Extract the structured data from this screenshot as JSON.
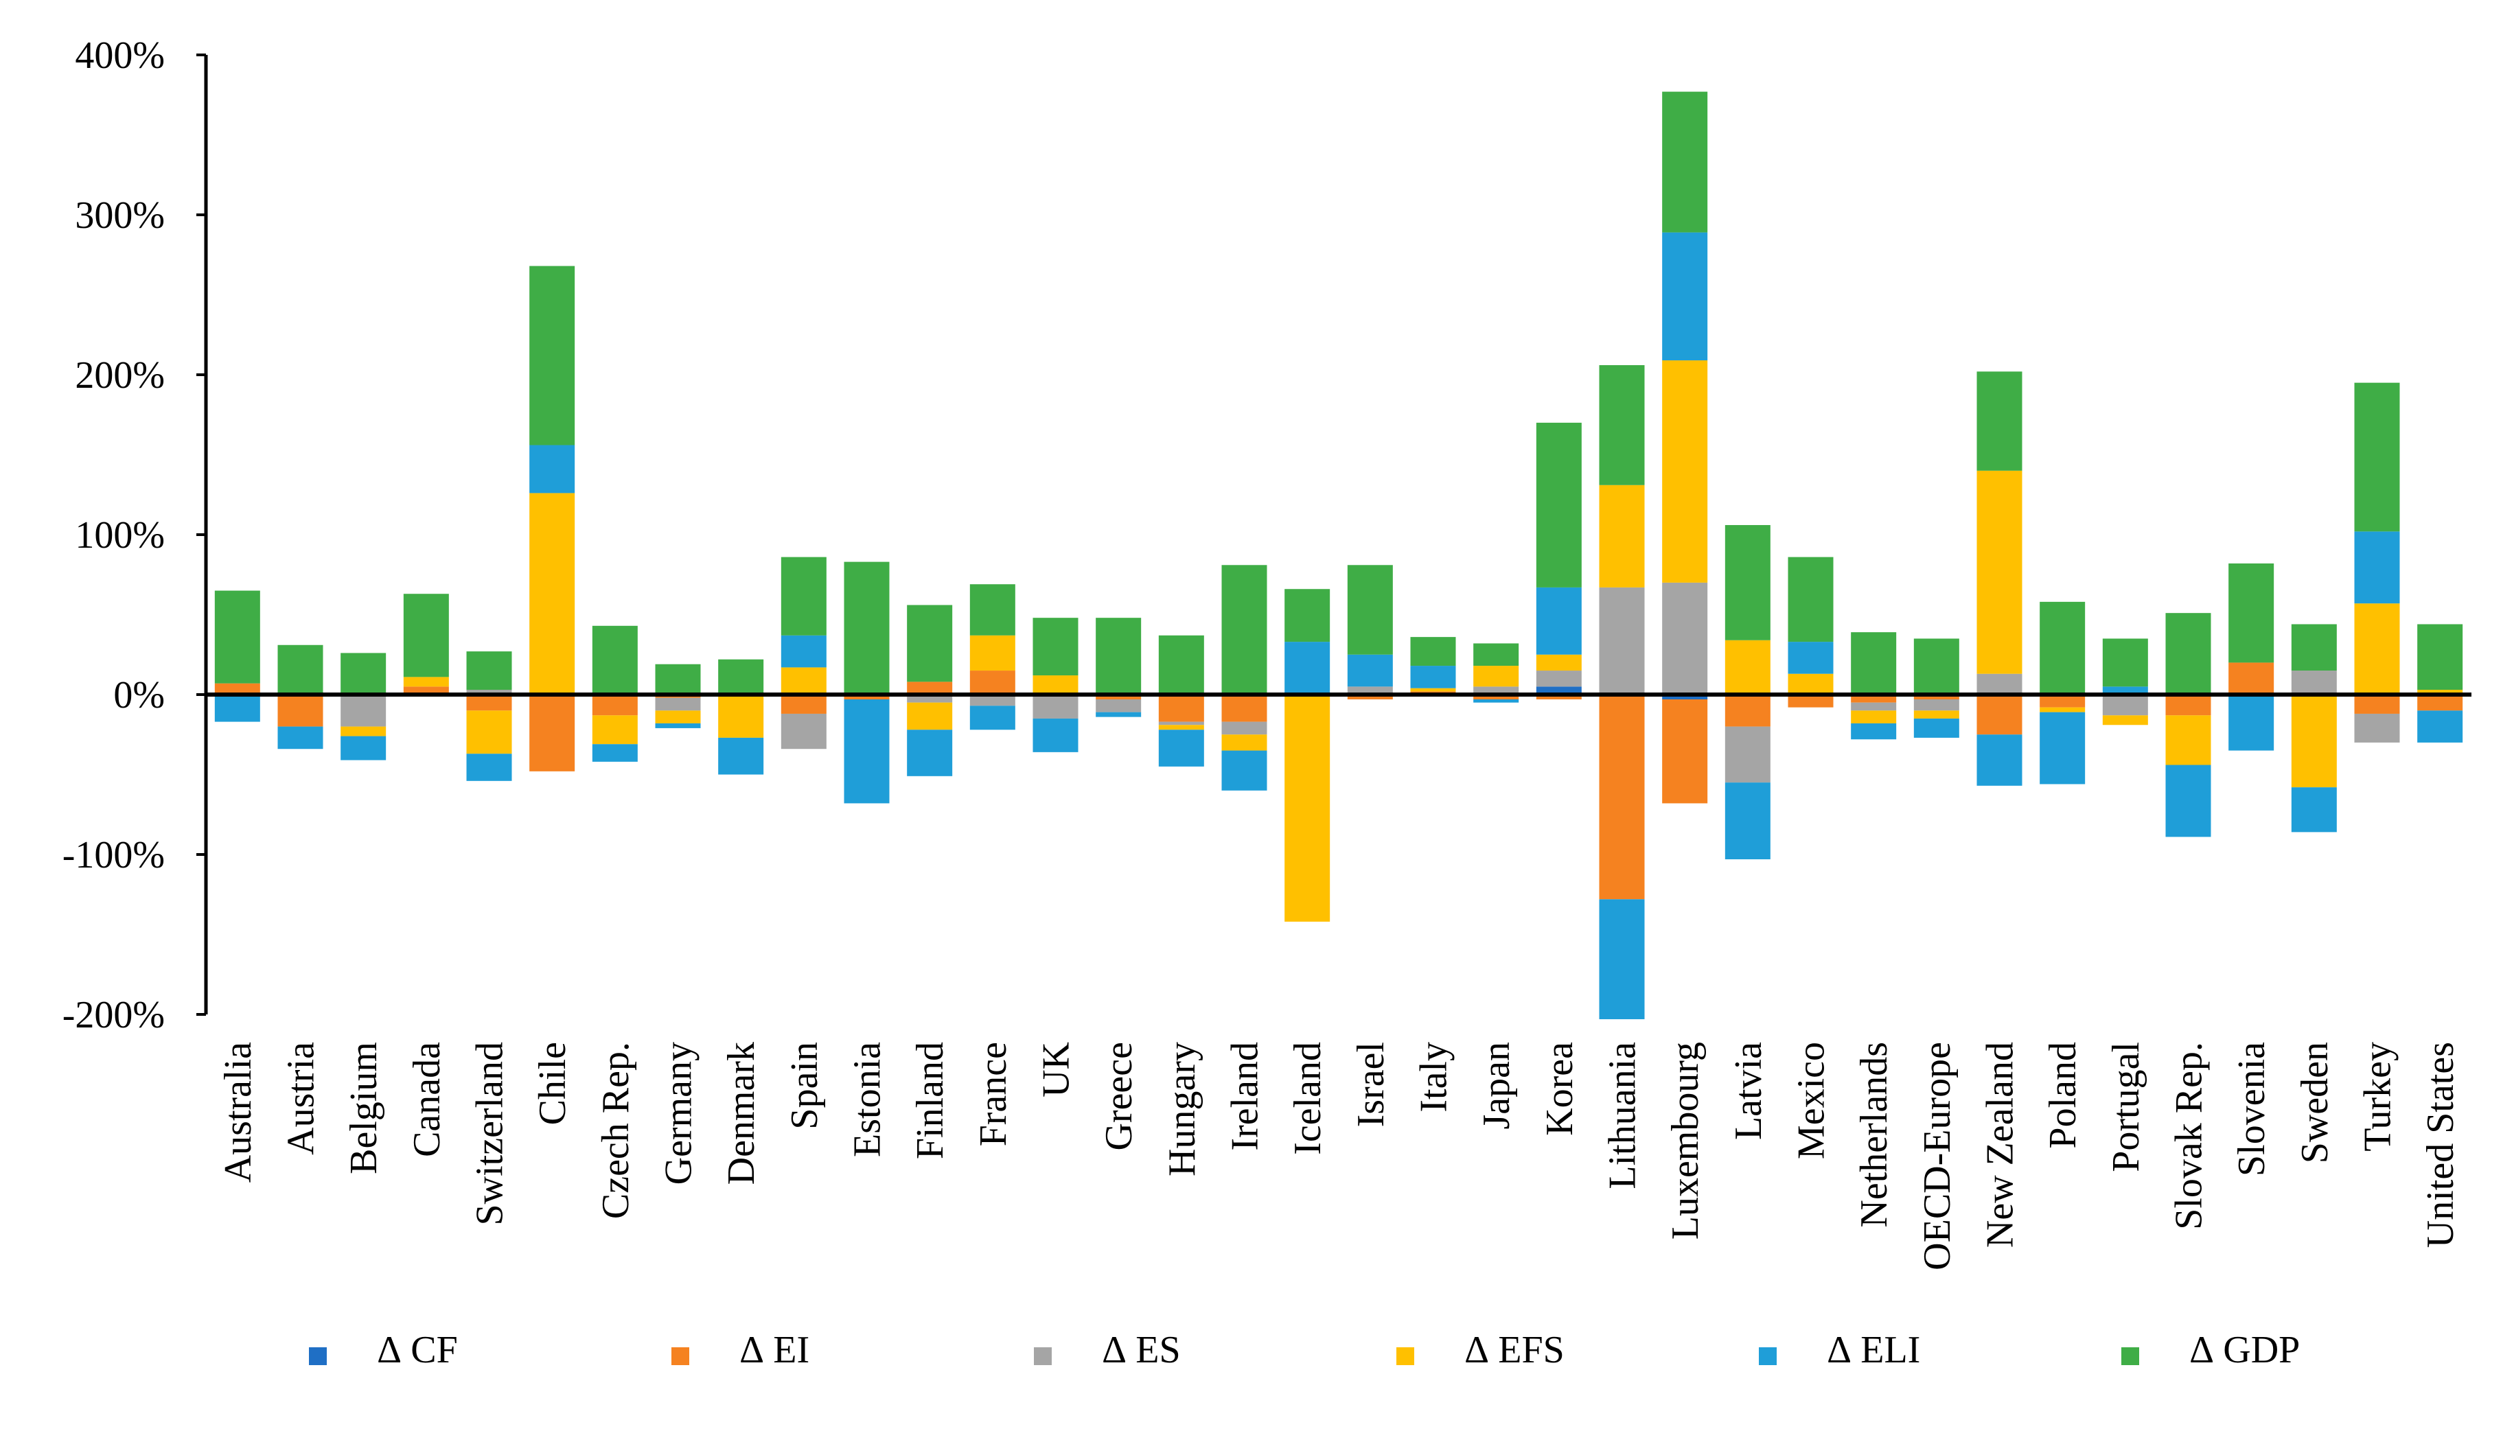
{
  "chart_data": {
    "type": "bar",
    "stacked": true,
    "title": "",
    "xlabel": "",
    "ylabel": "",
    "ylim": [
      -200,
      400
    ],
    "yticks": [
      -200,
      -100,
      0,
      100,
      200,
      300,
      400
    ],
    "ytick_labels": [
      "-200%",
      "-100%",
      "0%",
      "100%",
      "200%",
      "300%",
      "400%"
    ],
    "unit": "%",
    "legend_position": "bottom",
    "categories": [
      "Australia",
      "Austria",
      "Belgium",
      "Canada",
      "Switzerland",
      "Chile",
      "Czech Rep.",
      "Germany",
      "Denmark",
      "Spain",
      "Estonia",
      "Finland",
      "France",
      "UK",
      "Greece",
      "Hungary",
      "Ireland",
      "Iceland",
      "Israel",
      "Italy",
      "Japan",
      "Korea",
      "Lithuania",
      "Luxembourg",
      "Latvia",
      "Mexico",
      "Netherlands",
      "OECD-Europe",
      "New Zealand",
      "Poland",
      "Portugal",
      "Slovak Rep.",
      "Slovenia",
      "Sweden",
      "Turkey",
      "United States"
    ],
    "series": [
      {
        "name": "∆ CF",
        "color": "#1F6FC5",
        "values": [
          0,
          0,
          0,
          0,
          0,
          0,
          0,
          0,
          0,
          0,
          0,
          0,
          0,
          0,
          0,
          0,
          0,
          0,
          0,
          0,
          0,
          5,
          0,
          -3,
          0,
          0,
          0,
          0,
          0,
          0,
          0,
          0,
          0,
          0,
          0,
          0
        ]
      },
      {
        "name": "∆ EI",
        "color": "#F58220",
        "values": [
          7,
          -20,
          0,
          5,
          -10,
          -48,
          -13,
          -2,
          0,
          -12,
          -3,
          8,
          15,
          0,
          -3,
          -17,
          -17,
          0,
          -3,
          2,
          -3,
          -3,
          -128,
          -65,
          -20,
          -8,
          -5,
          -3,
          -25,
          -8,
          0,
          -13,
          20,
          0,
          -12,
          -10
        ]
      },
      {
        "name": "∆ ES",
        "color": "#A5A5A5",
        "values": [
          0,
          0,
          -20,
          0,
          3,
          0,
          0,
          -8,
          0,
          -22,
          0,
          -5,
          -7,
          -15,
          -8,
          -2,
          -8,
          0,
          5,
          0,
          5,
          10,
          67,
          70,
          -35,
          0,
          -5,
          -7,
          13,
          0,
          -13,
          0,
          0,
          15,
          -18,
          0
        ]
      },
      {
        "name": "∆ EFS",
        "color": "#FFC000",
        "values": [
          0,
          0,
          -6,
          6,
          -27,
          126,
          -18,
          -8,
          -27,
          17,
          0,
          -17,
          22,
          12,
          0,
          -3,
          -10,
          -142,
          0,
          2,
          13,
          10,
          64,
          139,
          34,
          13,
          -8,
          -5,
          127,
          -3,
          -6,
          -31,
          0,
          -58,
          57,
          3
        ]
      },
      {
        "name": "∆ ELI",
        "color": "#1F9ED8",
        "values": [
          -17,
          -14,
          -15,
          0,
          -17,
          30,
          -11,
          -3,
          -23,
          20,
          -65,
          -29,
          -15,
          -21,
          -3,
          -23,
          -25,
          33,
          20,
          14,
          -2,
          42,
          -75,
          80,
          -48,
          20,
          -10,
          -12,
          -32,
          -45,
          5,
          -45,
          -35,
          -28,
          45,
          -20
        ]
      },
      {
        "name": "∆ GDP",
        "color": "#3FAD46",
        "values": [
          58,
          31,
          26,
          52,
          24,
          112,
          43,
          19,
          22,
          49,
          83,
          48,
          32,
          36,
          48,
          37,
          81,
          33,
          56,
          18,
          14,
          103,
          75,
          88,
          72,
          53,
          39,
          35,
          62,
          58,
          30,
          51,
          62,
          29,
          93,
          41
        ]
      }
    ]
  }
}
